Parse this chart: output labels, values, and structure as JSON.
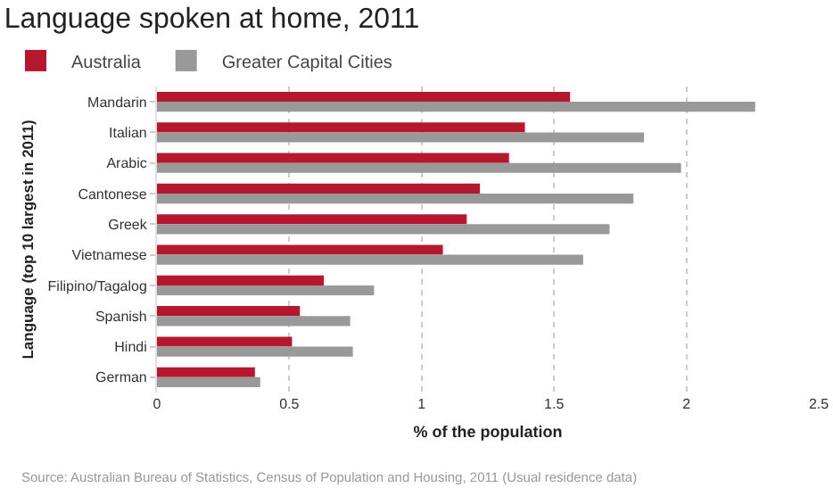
{
  "chart_data": {
    "type": "bar",
    "orientation": "horizontal",
    "title": "Language spoken at home, 2011",
    "xlabel": "% of the population",
    "ylabel": "Language (top 10 largest in 2011)",
    "categories": [
      "Mandarin",
      "Italian",
      "Arabic",
      "Cantonese",
      "Greek",
      "Vietnamese",
      "Filipino/Tagalog",
      "Spanish",
      "Hindi",
      "German"
    ],
    "series": [
      {
        "name": "Australia",
        "color": "#b5182e",
        "values": [
          1.56,
          1.39,
          1.33,
          1.22,
          1.17,
          1.08,
          0.63,
          0.54,
          0.51,
          0.37
        ]
      },
      {
        "name": "Greater Capital Cities",
        "color": "#999999",
        "values": [
          2.26,
          1.84,
          1.98,
          1.8,
          1.71,
          1.61,
          0.82,
          0.73,
          0.74,
          0.39
        ]
      }
    ],
    "xlim": [
      0,
      2.5
    ],
    "xticks": [
      0,
      0.5,
      1,
      1.5,
      2,
      2.5
    ],
    "grid": "x",
    "legend": "top left",
    "annotations": [
      "Source: Australian Bureau of Statistics, Census of Population and Housing, 2011 (Usual residence data)"
    ]
  }
}
